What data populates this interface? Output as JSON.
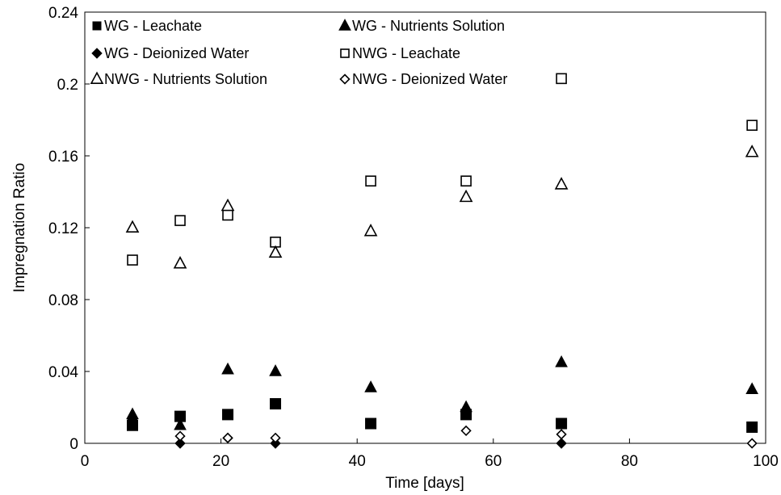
{
  "chart_data": {
    "type": "scatter",
    "title": "",
    "xlabel": "Time [days]",
    "ylabel": "Impregnation Ratio",
    "xlim": [
      0,
      100
    ],
    "ylim": [
      0,
      0.24
    ],
    "x_ticks": [
      "0",
      "20",
      "40",
      "60",
      "80",
      "100"
    ],
    "y_ticks": [
      "0",
      "0.04",
      "0.08",
      "0.12",
      "0.16",
      "0.2",
      "0.24"
    ],
    "grid": false,
    "legend_position": "top",
    "series": [
      {
        "name": "WG - Leachate",
        "marker": "square-filled",
        "points": [
          [
            7,
            0.01
          ],
          [
            14,
            0.015
          ],
          [
            21,
            0.016
          ],
          [
            28,
            0.022
          ],
          [
            42,
            0.011
          ],
          [
            56,
            0.016
          ],
          [
            70,
            0.011
          ],
          [
            98,
            0.009
          ]
        ]
      },
      {
        "name": "WG - Nutrients Solution",
        "marker": "triangle-filled",
        "points": [
          [
            7,
            0.016
          ],
          [
            14,
            0.01
          ],
          [
            21,
            0.041
          ],
          [
            28,
            0.04
          ],
          [
            42,
            0.031
          ],
          [
            56,
            0.02
          ],
          [
            70,
            0.045
          ],
          [
            98,
            0.03
          ]
        ]
      },
      {
        "name": "WG - Deionized Water",
        "marker": "diamond-filled",
        "points": [
          [
            7,
            0.013
          ],
          [
            14,
            0.0
          ],
          [
            21,
            0.003
          ],
          [
            28,
            0.0
          ],
          [
            70,
            0.0
          ]
        ]
      },
      {
        "name": "NWG - Leachate",
        "marker": "square-open",
        "points": [
          [
            7,
            0.102
          ],
          [
            14,
            0.124
          ],
          [
            21,
            0.127
          ],
          [
            28,
            0.112
          ],
          [
            42,
            0.146
          ],
          [
            56,
            0.146
          ],
          [
            70,
            0.203
          ],
          [
            98,
            0.177
          ]
        ]
      },
      {
        "name": "NWG - Nutrients Solution",
        "marker": "triangle-open",
        "points": [
          [
            7,
            0.12
          ],
          [
            14,
            0.1
          ],
          [
            21,
            0.132
          ],
          [
            28,
            0.106
          ],
          [
            42,
            0.118
          ],
          [
            56,
            0.137
          ],
          [
            70,
            0.144
          ],
          [
            98,
            0.162
          ]
        ]
      },
      {
        "name": "NWG - Deionized Water",
        "marker": "diamond-open",
        "points": [
          [
            14,
            0.004
          ],
          [
            21,
            0.003
          ],
          [
            28,
            0.003
          ],
          [
            56,
            0.007
          ],
          [
            70,
            0.005
          ],
          [
            98,
            0.0
          ]
        ]
      }
    ]
  }
}
